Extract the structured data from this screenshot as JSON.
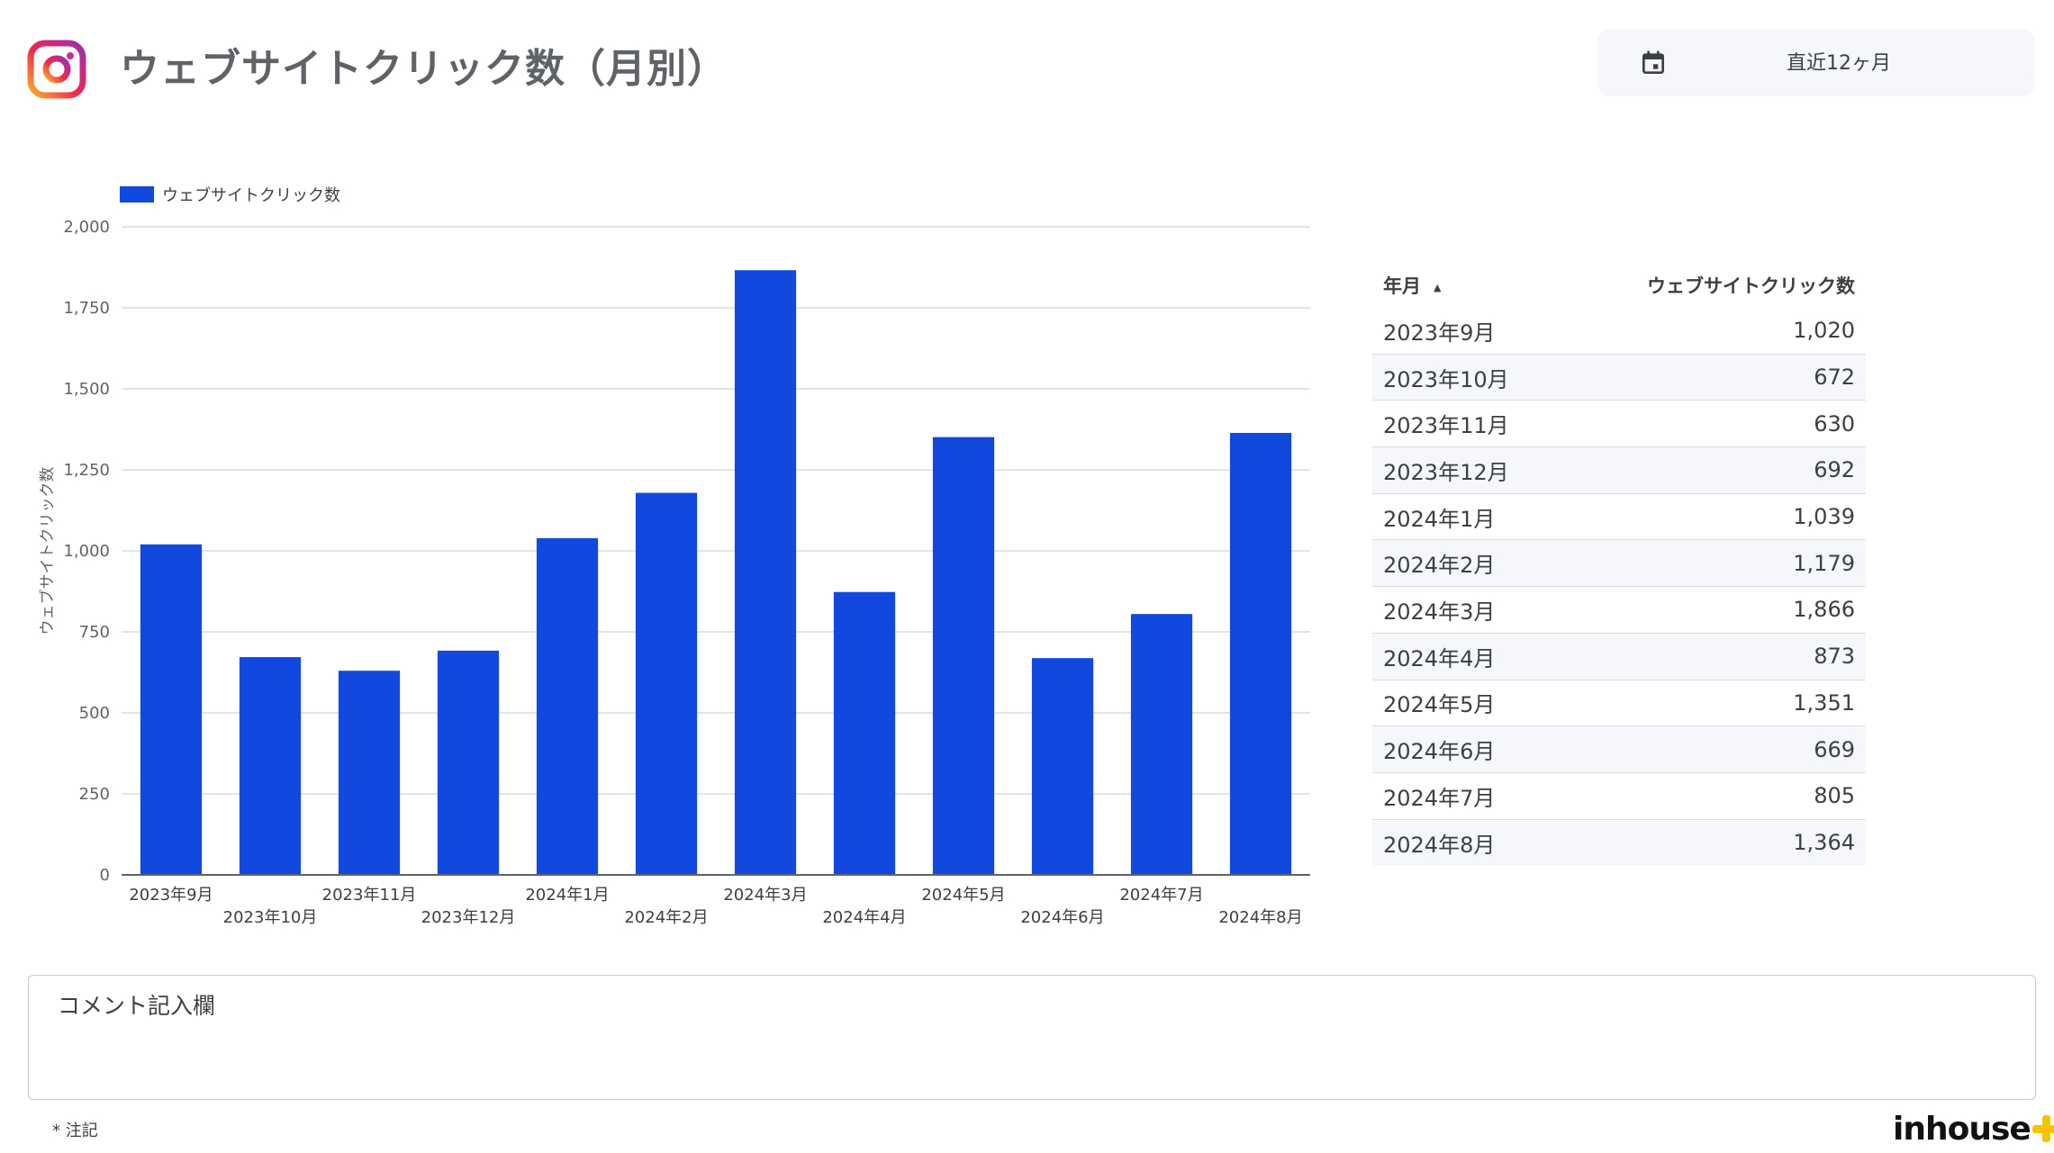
{
  "header": {
    "title": "ウェブサイトクリック数（月別）",
    "date_range_label": "直近12ヶ月"
  },
  "chart_data": {
    "type": "bar",
    "categories": [
      "2023年9月",
      "2023年10月",
      "2023年11月",
      "2023年12月",
      "2024年1月",
      "2024年2月",
      "2024年3月",
      "2024年4月",
      "2024年5月",
      "2024年6月",
      "2024年7月",
      "2024年8月"
    ],
    "series": [
      {
        "name": "ウェブサイトクリック数",
        "values": [
          1020,
          672,
          630,
          692,
          1039,
          1179,
          1866,
          873,
          1351,
          669,
          805,
          1364
        ],
        "color": "#1149de"
      }
    ],
    "ylabel": "ウェブサイトクリック数",
    "xlabel": "",
    "ylim": [
      0,
      2000
    ],
    "yticks": [
      0,
      250,
      500,
      750,
      1000,
      1250,
      1500,
      1750,
      2000
    ],
    "ytick_labels": [
      "0",
      "250",
      "500",
      "750",
      "1,000",
      "1,250",
      "1,500",
      "1,750",
      "2,000"
    ],
    "grid": true,
    "legend": "top-left"
  },
  "table": {
    "col_month": "年月",
    "sort_indicator": "▲",
    "col_clicks": "ウェブサイトクリック数",
    "rows": [
      {
        "month": "2023年9月",
        "clicks": "1,020"
      },
      {
        "month": "2023年10月",
        "clicks": "672"
      },
      {
        "month": "2023年11月",
        "clicks": "630"
      },
      {
        "month": "2023年12月",
        "clicks": "692"
      },
      {
        "month": "2024年1月",
        "clicks": "1,039"
      },
      {
        "month": "2024年2月",
        "clicks": "1,179"
      },
      {
        "month": "2024年3月",
        "clicks": "1,866"
      },
      {
        "month": "2024年4月",
        "clicks": "873"
      },
      {
        "month": "2024年5月",
        "clicks": "1,351"
      },
      {
        "month": "2024年6月",
        "clicks": "669"
      },
      {
        "month": "2024年7月",
        "clicks": "805"
      },
      {
        "month": "2024年8月",
        "clicks": "1,364"
      }
    ]
  },
  "comment": {
    "title": "コメント記入欄"
  },
  "footnote": "* 注記",
  "brand": {
    "name": "inhouse"
  },
  "icons": {
    "logo": "instagram-icon",
    "calendar": "calendar-icon",
    "brand_mark": "plus-icon"
  }
}
